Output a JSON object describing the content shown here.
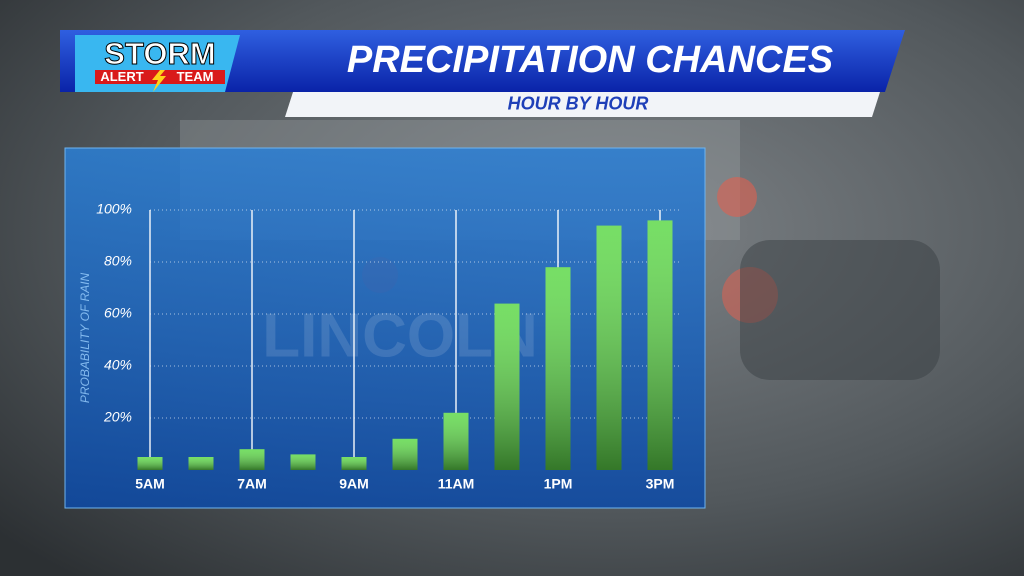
{
  "chart_data": {
    "type": "bar",
    "logo": {
      "line1": "STORM",
      "line2": "ALERT",
      "line3": "TEAM"
    },
    "title": "PRECIPITATION CHANCES",
    "subtitle": "HOUR BY HOUR",
    "watermark": "LINCOLN",
    "y_label": "PROBABILITY OF RAIN",
    "categories": [
      "5AM",
      null,
      "7AM",
      null,
      "9AM",
      null,
      "11AM",
      null,
      "1PM",
      null,
      "3PM"
    ],
    "values": [
      5,
      5,
      8,
      6,
      5,
      12,
      22,
      64,
      78,
      94,
      96
    ],
    "color": "#5fd94a",
    "ylim": [
      0,
      100
    ],
    "yticks": [
      {
        "value": 20,
        "label": "20%"
      },
      {
        "value": 40,
        "label": "40%"
      },
      {
        "value": 60,
        "label": "60%"
      },
      {
        "value": 80,
        "label": "80%"
      },
      {
        "value": 100,
        "label": "100%"
      }
    ],
    "grid": true
  }
}
